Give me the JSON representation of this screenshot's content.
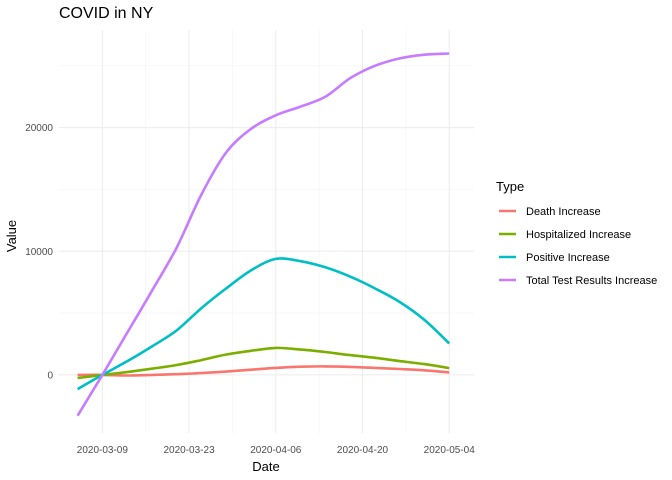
{
  "chart_data": {
    "type": "line",
    "title": "COVID in NY",
    "xlabel": "Date",
    "ylabel": "Value",
    "x_ticks": [
      "2020-03-09",
      "2020-03-23",
      "2020-04-06",
      "2020-04-20",
      "2020-05-04"
    ],
    "y_ticks": [
      0,
      10000,
      20000
    ],
    "xlim": [
      "2020-03-02",
      "2020-05-08"
    ],
    "ylim": [
      -4700,
      27900
    ],
    "grid": true,
    "legend": {
      "title": "Type",
      "position": "right"
    },
    "series": [
      {
        "name": "Death Increase",
        "color": "#F8766D",
        "points": [
          [
            "2020-03-05",
            0
          ],
          [
            "2020-03-09",
            0
          ],
          [
            "2020-03-13",
            -50
          ],
          [
            "2020-03-17",
            0
          ],
          [
            "2020-03-21",
            60
          ],
          [
            "2020-03-25",
            150
          ],
          [
            "2020-03-29",
            270
          ],
          [
            "2020-04-02",
            420
          ],
          [
            "2020-04-06",
            570
          ],
          [
            "2020-04-10",
            660
          ],
          [
            "2020-04-14",
            690
          ],
          [
            "2020-04-18",
            650
          ],
          [
            "2020-04-22",
            570
          ],
          [
            "2020-04-26",
            480
          ],
          [
            "2020-04-30",
            370
          ],
          [
            "2020-05-04",
            200
          ]
        ]
      },
      {
        "name": "Hospitalized Increase",
        "color": "#7CAE00",
        "points": [
          [
            "2020-03-05",
            -250
          ],
          [
            "2020-03-09",
            0
          ],
          [
            "2020-03-13",
            230
          ],
          [
            "2020-03-17",
            500
          ],
          [
            "2020-03-21",
            800
          ],
          [
            "2020-03-25",
            1200
          ],
          [
            "2020-03-29",
            1650
          ],
          [
            "2020-04-02",
            1950
          ],
          [
            "2020-04-06",
            2180
          ],
          [
            "2020-04-10",
            2050
          ],
          [
            "2020-04-14",
            1850
          ],
          [
            "2020-04-18",
            1600
          ],
          [
            "2020-04-22",
            1380
          ],
          [
            "2020-04-26",
            1120
          ],
          [
            "2020-04-30",
            870
          ],
          [
            "2020-05-04",
            550
          ]
        ]
      },
      {
        "name": "Positive Increase",
        "color": "#00BFC4",
        "points": [
          [
            "2020-03-05",
            -1150
          ],
          [
            "2020-03-09",
            0
          ],
          [
            "2020-03-13",
            1100
          ],
          [
            "2020-03-17",
            2300
          ],
          [
            "2020-03-21",
            3600
          ],
          [
            "2020-03-25",
            5400
          ],
          [
            "2020-03-29",
            7000
          ],
          [
            "2020-04-02",
            8450
          ],
          [
            "2020-04-06",
            9380
          ],
          [
            "2020-04-10",
            9200
          ],
          [
            "2020-04-14",
            8700
          ],
          [
            "2020-04-18",
            7950
          ],
          [
            "2020-04-22",
            7000
          ],
          [
            "2020-04-26",
            5900
          ],
          [
            "2020-04-30",
            4450
          ],
          [
            "2020-05-04",
            2550
          ]
        ]
      },
      {
        "name": "Total Test Results Increase",
        "color": "#C77CFF",
        "points": [
          [
            "2020-03-05",
            -3300
          ],
          [
            "2020-03-09",
            0
          ],
          [
            "2020-03-13",
            3400
          ],
          [
            "2020-03-17",
            6800
          ],
          [
            "2020-03-21",
            10300
          ],
          [
            "2020-03-25",
            14600
          ],
          [
            "2020-03-29",
            18000
          ],
          [
            "2020-04-02",
            19900
          ],
          [
            "2020-04-06",
            21000
          ],
          [
            "2020-04-10",
            21700
          ],
          [
            "2020-04-14",
            22500
          ],
          [
            "2020-04-18",
            24000
          ],
          [
            "2020-04-22",
            25000
          ],
          [
            "2020-04-26",
            25600
          ],
          [
            "2020-04-30",
            25900
          ],
          [
            "2020-05-04",
            26000
          ]
        ]
      }
    ]
  }
}
